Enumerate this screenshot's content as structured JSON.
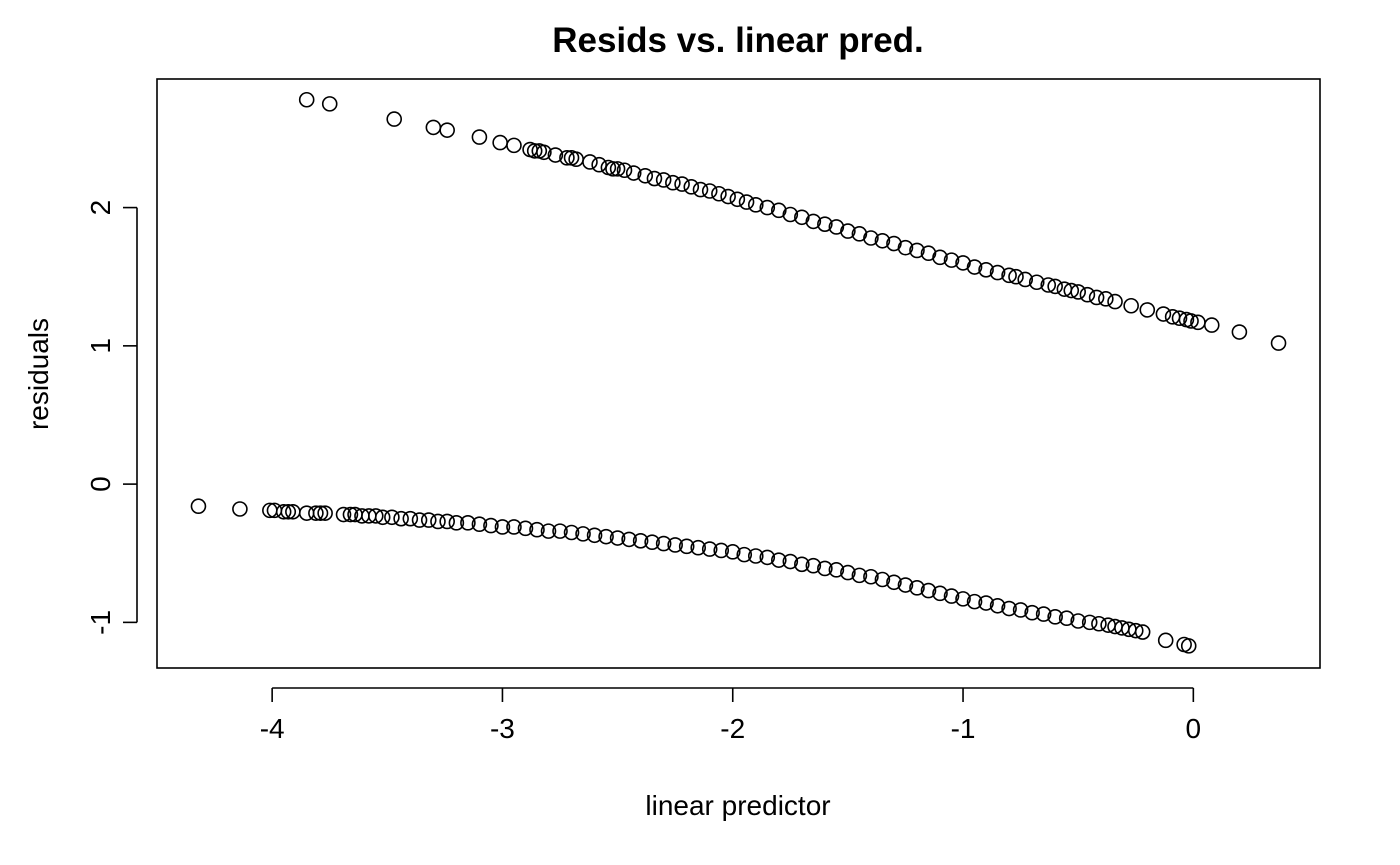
{
  "chart_data": {
    "type": "scatter",
    "title": "Resids vs. linear pred.",
    "xlabel": "linear predictor",
    "ylabel": "residuals",
    "xlim": [
      -4.5,
      0.55
    ],
    "ylim": [
      -1.33,
      2.93
    ],
    "x_ticks": [
      -4,
      -3,
      -2,
      -1,
      0
    ],
    "x_tick_labels": [
      "-4",
      "-3",
      "-2",
      "-1",
      "0"
    ],
    "y_ticks": [
      -1,
      0,
      1,
      2
    ],
    "y_tick_labels": [
      "-1",
      "0",
      "1",
      "2"
    ],
    "grid": false,
    "marker": "open-circle",
    "series": [
      {
        "points": [
          [
            -3.85,
            2.78
          ],
          [
            -3.75,
            2.75
          ],
          [
            -3.47,
            2.64
          ],
          [
            -3.3,
            2.58
          ],
          [
            -3.24,
            2.56
          ],
          [
            -3.1,
            2.51
          ],
          [
            -3.01,
            2.47
          ],
          [
            -2.95,
            2.45
          ],
          [
            -2.88,
            2.42
          ],
          [
            -2.86,
            2.41
          ],
          [
            -2.84,
            2.41
          ],
          [
            -2.82,
            2.4
          ],
          [
            -2.77,
            2.38
          ],
          [
            -2.72,
            2.36
          ],
          [
            -2.7,
            2.36
          ],
          [
            -2.68,
            2.35
          ],
          [
            -2.62,
            2.33
          ],
          [
            -2.58,
            2.31
          ],
          [
            -2.54,
            2.29
          ],
          [
            -2.52,
            2.28
          ],
          [
            -2.5,
            2.28
          ],
          [
            -2.47,
            2.27
          ],
          [
            -2.43,
            2.25
          ],
          [
            -2.38,
            2.23
          ],
          [
            -2.34,
            2.21
          ],
          [
            -2.3,
            2.2
          ],
          [
            -2.26,
            2.18
          ],
          [
            -2.22,
            2.17
          ],
          [
            -2.18,
            2.15
          ],
          [
            -2.14,
            2.13
          ],
          [
            -2.1,
            2.12
          ],
          [
            -2.06,
            2.1
          ],
          [
            -2.02,
            2.08
          ],
          [
            -1.98,
            2.06
          ],
          [
            -1.94,
            2.04
          ],
          [
            -1.9,
            2.02
          ],
          [
            -1.85,
            2.0
          ],
          [
            -1.8,
            1.98
          ],
          [
            -1.75,
            1.95
          ],
          [
            -1.7,
            1.93
          ],
          [
            -1.65,
            1.9
          ],
          [
            -1.6,
            1.88
          ],
          [
            -1.55,
            1.86
          ],
          [
            -1.5,
            1.83
          ],
          [
            -1.45,
            1.81
          ],
          [
            -1.4,
            1.78
          ],
          [
            -1.35,
            1.76
          ],
          [
            -1.3,
            1.74
          ],
          [
            -1.25,
            1.71
          ],
          [
            -1.2,
            1.69
          ],
          [
            -1.15,
            1.67
          ],
          [
            -1.1,
            1.64
          ],
          [
            -1.05,
            1.62
          ],
          [
            -1.0,
            1.6
          ],
          [
            -0.95,
            1.57
          ],
          [
            -0.9,
            1.55
          ],
          [
            -0.85,
            1.53
          ],
          [
            -0.8,
            1.51
          ],
          [
            -0.77,
            1.5
          ],
          [
            -0.73,
            1.48
          ],
          [
            -0.68,
            1.46
          ],
          [
            -0.63,
            1.44
          ],
          [
            -0.6,
            1.43
          ],
          [
            -0.56,
            1.41
          ],
          [
            -0.53,
            1.4
          ],
          [
            -0.5,
            1.39
          ],
          [
            -0.46,
            1.37
          ],
          [
            -0.42,
            1.35
          ],
          [
            -0.38,
            1.34
          ],
          [
            -0.34,
            1.32
          ],
          [
            -0.27,
            1.29
          ],
          [
            -0.2,
            1.26
          ],
          [
            -0.13,
            1.23
          ],
          [
            -0.09,
            1.21
          ],
          [
            -0.06,
            1.2
          ],
          [
            -0.03,
            1.19
          ],
          [
            -0.01,
            1.18
          ],
          [
            0.02,
            1.17
          ],
          [
            0.08,
            1.15
          ],
          [
            0.2,
            1.1
          ],
          [
            0.37,
            1.02
          ]
        ]
      },
      {
        "points": [
          [
            -4.32,
            -0.16
          ],
          [
            -4.14,
            -0.18
          ],
          [
            -4.01,
            -0.19
          ],
          [
            -3.99,
            -0.19
          ],
          [
            -3.95,
            -0.2
          ],
          [
            -3.93,
            -0.2
          ],
          [
            -3.91,
            -0.2
          ],
          [
            -3.85,
            -0.21
          ],
          [
            -3.81,
            -0.21
          ],
          [
            -3.79,
            -0.21
          ],
          [
            -3.77,
            -0.21
          ],
          [
            -3.69,
            -0.22
          ],
          [
            -3.66,
            -0.22
          ],
          [
            -3.64,
            -0.22
          ],
          [
            -3.61,
            -0.23
          ],
          [
            -3.58,
            -0.23
          ],
          [
            -3.55,
            -0.23
          ],
          [
            -3.52,
            -0.24
          ],
          [
            -3.48,
            -0.24
          ],
          [
            -3.44,
            -0.25
          ],
          [
            -3.4,
            -0.25
          ],
          [
            -3.36,
            -0.26
          ],
          [
            -3.32,
            -0.26
          ],
          [
            -3.28,
            -0.27
          ],
          [
            -3.24,
            -0.27
          ],
          [
            -3.2,
            -0.28
          ],
          [
            -3.15,
            -0.28
          ],
          [
            -3.1,
            -0.29
          ],
          [
            -3.05,
            -0.3
          ],
          [
            -3.0,
            -0.31
          ],
          [
            -2.95,
            -0.31
          ],
          [
            -2.9,
            -0.32
          ],
          [
            -2.85,
            -0.33
          ],
          [
            -2.8,
            -0.34
          ],
          [
            -2.75,
            -0.34
          ],
          [
            -2.7,
            -0.35
          ],
          [
            -2.65,
            -0.36
          ],
          [
            -2.6,
            -0.37
          ],
          [
            -2.55,
            -0.38
          ],
          [
            -2.5,
            -0.39
          ],
          [
            -2.45,
            -0.4
          ],
          [
            -2.4,
            -0.41
          ],
          [
            -2.35,
            -0.42
          ],
          [
            -2.3,
            -0.43
          ],
          [
            -2.25,
            -0.44
          ],
          [
            -2.2,
            -0.45
          ],
          [
            -2.15,
            -0.46
          ],
          [
            -2.1,
            -0.47
          ],
          [
            -2.05,
            -0.48
          ],
          [
            -2.0,
            -0.49
          ],
          [
            -1.95,
            -0.51
          ],
          [
            -1.9,
            -0.52
          ],
          [
            -1.85,
            -0.53
          ],
          [
            -1.8,
            -0.55
          ],
          [
            -1.75,
            -0.56
          ],
          [
            -1.7,
            -0.58
          ],
          [
            -1.65,
            -0.59
          ],
          [
            -1.6,
            -0.61
          ],
          [
            -1.55,
            -0.62
          ],
          [
            -1.5,
            -0.64
          ],
          [
            -1.45,
            -0.66
          ],
          [
            -1.4,
            -0.67
          ],
          [
            -1.35,
            -0.69
          ],
          [
            -1.3,
            -0.71
          ],
          [
            -1.25,
            -0.73
          ],
          [
            -1.2,
            -0.75
          ],
          [
            -1.15,
            -0.77
          ],
          [
            -1.1,
            -0.79
          ],
          [
            -1.05,
            -0.81
          ],
          [
            -1.0,
            -0.83
          ],
          [
            -0.95,
            -0.85
          ],
          [
            -0.9,
            -0.86
          ],
          [
            -0.85,
            -0.88
          ],
          [
            -0.8,
            -0.9
          ],
          [
            -0.75,
            -0.91
          ],
          [
            -0.7,
            -0.93
          ],
          [
            -0.65,
            -0.94
          ],
          [
            -0.6,
            -0.96
          ],
          [
            -0.55,
            -0.97
          ],
          [
            -0.5,
            -0.99
          ],
          [
            -0.45,
            -1.0
          ],
          [
            -0.41,
            -1.01
          ],
          [
            -0.37,
            -1.02
          ],
          [
            -0.34,
            -1.03
          ],
          [
            -0.31,
            -1.04
          ],
          [
            -0.28,
            -1.05
          ],
          [
            -0.25,
            -1.06
          ],
          [
            -0.22,
            -1.07
          ],
          [
            -0.12,
            -1.13
          ],
          [
            -0.04,
            -1.16
          ],
          [
            -0.02,
            -1.17
          ]
        ]
      }
    ]
  }
}
